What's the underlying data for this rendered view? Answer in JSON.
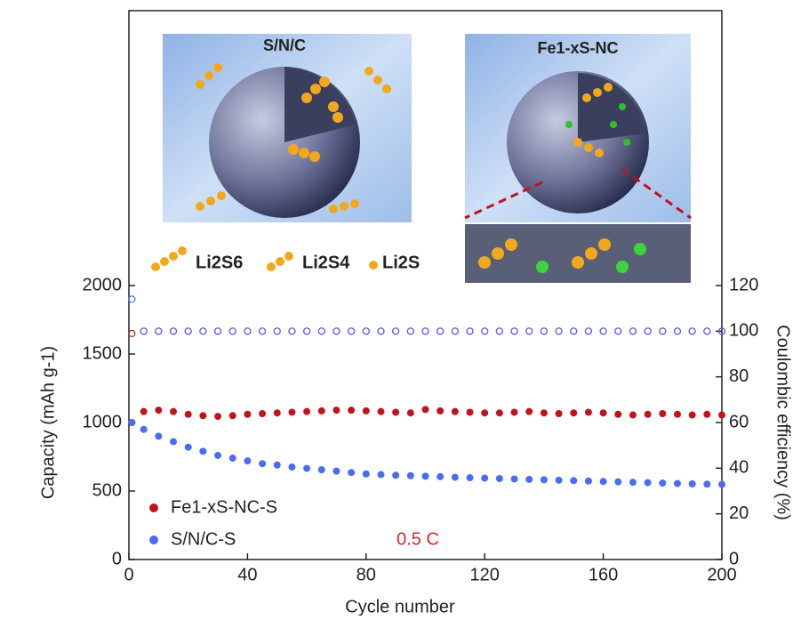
{
  "chart_data": {
    "type": "scatter",
    "x_label": "Cycle number",
    "y_label": "Capacity (mAh g-1)",
    "y2_label": "Coulombic efficiency (%)",
    "annotation": "0.5 C",
    "annotation_color": "#d8232a",
    "xlim": [
      0,
      200
    ],
    "xticks": [
      0,
      40,
      80,
      120,
      160,
      200
    ],
    "ylim": [
      0,
      2000
    ],
    "yticks": [
      0,
      500,
      1000,
      1500,
      2000
    ],
    "y2lim": [
      0,
      120
    ],
    "y2ticks": [
      0,
      20,
      40,
      60,
      80,
      100,
      120
    ],
    "legend": "lower left",
    "x": [
      1,
      5,
      10,
      15,
      20,
      25,
      30,
      35,
      40,
      45,
      50,
      55,
      60,
      65,
      70,
      75,
      80,
      85,
      90,
      95,
      100,
      105,
      110,
      115,
      120,
      125,
      130,
      135,
      140,
      145,
      150,
      155,
      160,
      165,
      170,
      175,
      180,
      185,
      190,
      195,
      200
    ],
    "series": [
      {
        "name": "Fe1-xS-NC-S",
        "color": "#c0141c",
        "values": [
          1000,
          1080,
          1090,
          1080,
          1060,
          1050,
          1045,
          1050,
          1060,
          1065,
          1070,
          1075,
          1080,
          1085,
          1090,
          1090,
          1085,
          1080,
          1075,
          1070,
          1095,
          1085,
          1080,
          1075,
          1070,
          1070,
          1075,
          1080,
          1070,
          1065,
          1070,
          1075,
          1070,
          1060,
          1055,
          1060,
          1065,
          1060,
          1055,
          1060,
          1055
        ],
        "ce_values": [
          99,
          100,
          100,
          100,
          100,
          100,
          100,
          100,
          100,
          100,
          100,
          100,
          100,
          100,
          100,
          100,
          100,
          100,
          100,
          100,
          100,
          100,
          100,
          100,
          100,
          100,
          100,
          100,
          100,
          100,
          100,
          100,
          100,
          100,
          100,
          100,
          100,
          100,
          100,
          100,
          100
        ]
      },
      {
        "name": "S/N/C-S",
        "color": "#4a6cf0",
        "values": [
          1000,
          950,
          900,
          860,
          820,
          790,
          760,
          740,
          720,
          700,
          690,
          675,
          665,
          655,
          645,
          635,
          625,
          620,
          615,
          612,
          608,
          605,
          600,
          597,
          594,
          591,
          588,
          585,
          582,
          579,
          576,
          573,
          570,
          567,
          564,
          561,
          558,
          555,
          552,
          550,
          548
        ],
        "ce_values": [
          114,
          100,
          100,
          100,
          100,
          100,
          100,
          100,
          100,
          100,
          100,
          100,
          100,
          100,
          100,
          100,
          100,
          100,
          100,
          100,
          100,
          100,
          100,
          100,
          100,
          100,
          100,
          100,
          100,
          100,
          100,
          100,
          100,
          100,
          100,
          100,
          100,
          100,
          100,
          100,
          100
        ]
      }
    ],
    "insets": {
      "left_title": "S/N/C",
      "right_title": "Fe1-xS-NC",
      "species": [
        "Li2S6",
        "Li2S4",
        "Li2S"
      ]
    }
  }
}
